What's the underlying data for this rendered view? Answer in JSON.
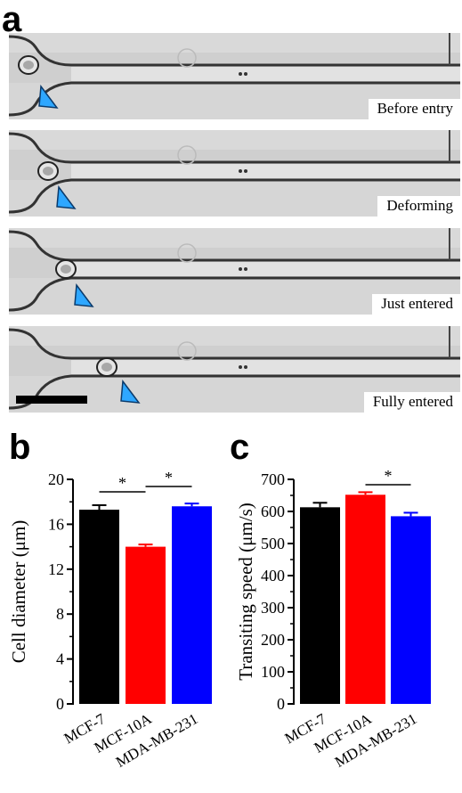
{
  "panels": {
    "a": {
      "letter": "a",
      "frames": [
        {
          "caption": "Before entry"
        },
        {
          "caption": "Deforming"
        },
        {
          "caption": "Just entered"
        },
        {
          "caption": "Fully entered"
        }
      ]
    },
    "b": {
      "letter": "b"
    },
    "c": {
      "letter": "c"
    }
  },
  "chart_data": [
    {
      "type": "bar",
      "panel": "b",
      "categories": [
        "MCF-7",
        "MCF-10A",
        "MDA-MB-231"
      ],
      "values": [
        17.3,
        14.0,
        17.6
      ],
      "errors": [
        0.4,
        0.2,
        0.25
      ],
      "colors": [
        "#000000",
        "#ff0000",
        "#0000ff"
      ],
      "ylabel": "Cell diameter (μm)",
      "ylim": [
        0,
        20
      ],
      "yticks": [
        0,
        4,
        8,
        12,
        16,
        20
      ],
      "significance": [
        {
          "from": 0,
          "to": 1,
          "label": "*"
        },
        {
          "from": 1,
          "to": 2,
          "label": "*"
        }
      ]
    },
    {
      "type": "bar",
      "panel": "c",
      "categories": [
        "MCF-7",
        "MCF-10A",
        "MDA-MB-231"
      ],
      "values": [
        613,
        652,
        585
      ],
      "errors": [
        14,
        8,
        11
      ],
      "colors": [
        "#000000",
        "#ff0000",
        "#0000ff"
      ],
      "ylabel": "Transiting speed (μm/s)",
      "ylim": [
        0,
        700
      ],
      "yticks": [
        0,
        100,
        200,
        300,
        400,
        500,
        600,
        700
      ],
      "significance": [
        {
          "from": 1,
          "to": 2,
          "label": "*"
        }
      ]
    }
  ]
}
